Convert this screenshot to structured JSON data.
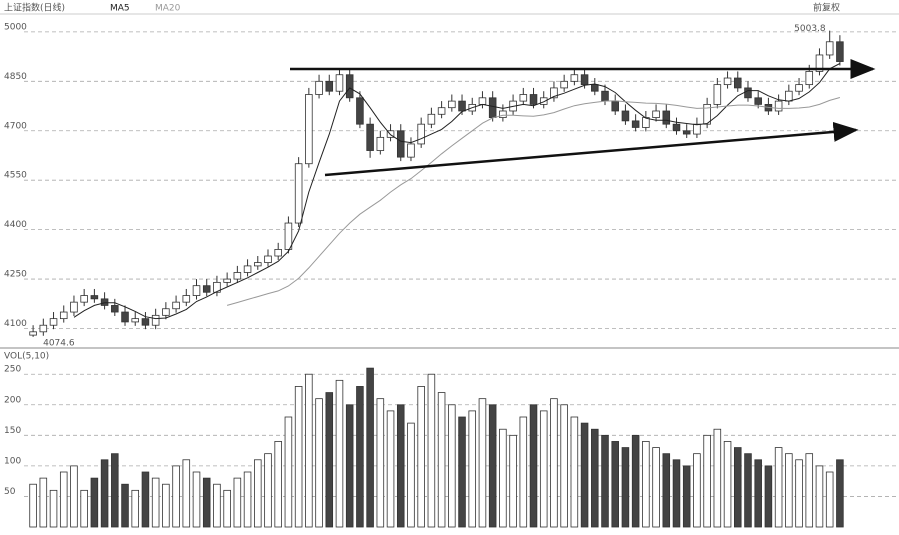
{
  "title": "上证指数(日线)",
  "adjust": "前复权",
  "volume_title": "VOL(5,10)",
  "chart_data": [
    {
      "type": "candlestick",
      "open": [
        4080,
        4090,
        4110,
        4130,
        4150,
        4180,
        4200,
        4190,
        4170,
        4150,
        4120,
        4130,
        4110,
        4140,
        4160,
        4180,
        4200,
        4230,
        4210,
        4240,
        4250,
        4270,
        4290,
        4300,
        4320,
        4340,
        4420,
        4600,
        4810,
        4850,
        4820,
        4870,
        4800,
        4720,
        4640,
        4680,
        4700,
        4620,
        4660,
        4720,
        4750,
        4770,
        4790,
        4760,
        4780,
        4800,
        4740,
        4760,
        4790,
        4810,
        4780,
        4800,
        4830,
        4850,
        4870,
        4840,
        4820,
        4790,
        4760,
        4730,
        4710,
        4740,
        4760,
        4720,
        4700,
        4690,
        4720,
        4780,
        4840,
        4860,
        4830,
        4800,
        4780,
        4760,
        4790,
        4820,
        4840,
        4880,
        4930,
        4970
      ],
      "high": [
        4110,
        4130,
        4150,
        4170,
        4200,
        4220,
        4220,
        4210,
        4190,
        4170,
        4150,
        4150,
        4160,
        4180,
        4200,
        4220,
        4250,
        4250,
        4260,
        4270,
        4290,
        4310,
        4320,
        4340,
        4360,
        4440,
        4620,
        4830,
        4870,
        4870,
        4890,
        4890,
        4820,
        4740,
        4700,
        4720,
        4720,
        4680,
        4740,
        4770,
        4790,
        4810,
        4810,
        4800,
        4820,
        4820,
        4780,
        4810,
        4830,
        4830,
        4820,
        4850,
        4870,
        4890,
        4890,
        4860,
        4840,
        4810,
        4780,
        4750,
        4760,
        4780,
        4780,
        4740,
        4720,
        4740,
        4800,
        4860,
        4880,
        4880,
        4850,
        4820,
        4800,
        4810,
        4840,
        4860,
        4900,
        4950,
        5003.8,
        4990
      ],
      "low": [
        4074.6,
        4078,
        4098,
        4118,
        4138,
        4168,
        4178,
        4158,
        4138,
        4108,
        4108,
        4098,
        4098,
        4128,
        4148,
        4168,
        4188,
        4198,
        4198,
        4228,
        4238,
        4258,
        4278,
        4288,
        4308,
        4328,
        4408,
        4588,
        4798,
        4808,
        4808,
        4788,
        4708,
        4618,
        4628,
        4668,
        4608,
        4608,
        4648,
        4708,
        4738,
        4758,
        4748,
        4748,
        4768,
        4728,
        4728,
        4748,
        4778,
        4768,
        4768,
        4788,
        4818,
        4838,
        4828,
        4808,
        4778,
        4748,
        4718,
        4698,
        4698,
        4728,
        4708,
        4688,
        4678,
        4678,
        4708,
        4768,
        4828,
        4818,
        4788,
        4768,
        4748,
        4748,
        4778,
        4808,
        4828,
        4868,
        4918,
        4898
      ],
      "close": [
        4090,
        4110,
        4130,
        4150,
        4180,
        4200,
        4190,
        4170,
        4150,
        4120,
        4130,
        4110,
        4140,
        4160,
        4180,
        4200,
        4230,
        4210,
        4240,
        4250,
        4270,
        4290,
        4300,
        4320,
        4340,
        4420,
        4600,
        4810,
        4850,
        4820,
        4870,
        4800,
        4720,
        4640,
        4680,
        4700,
        4620,
        4660,
        4720,
        4750,
        4770,
        4790,
        4760,
        4780,
        4800,
        4740,
        4760,
        4790,
        4810,
        4780,
        4800,
        4830,
        4850,
        4870,
        4840,
        4820,
        4790,
        4760,
        4730,
        4710,
        4740,
        4760,
        4720,
        4700,
        4690,
        4720,
        4780,
        4840,
        4860,
        4830,
        4800,
        4780,
        4760,
        4790,
        4820,
        4840,
        4880,
        4930,
        4970,
        4910
      ],
      "series": [
        {
          "name": "MA5",
          "color": "#222222",
          "values": [
            null,
            null,
            null,
            null,
            4134,
            4154,
            4170,
            4178,
            4178,
            4166,
            4152,
            4136,
            4130,
            4132,
            4144,
            4158,
            4182,
            4196,
            4212,
            4226,
            4240,
            4254,
            4270,
            4286,
            4304,
            4334,
            4396,
            4514,
            4604,
            4690,
            4790,
            4830,
            4812,
            4770,
            4726,
            4688,
            4668,
            4664,
            4676,
            4690,
            4704,
            4728,
            4758,
            4770,
            4780,
            4774,
            4768,
            4774,
            4780,
            4776,
            4788,
            4804,
            4814,
            4826,
            4838,
            4842,
            4834,
            4816,
            4788,
            4762,
            4738,
            4732,
            4732,
            4726,
            4722,
            4718,
            4722,
            4746,
            4778,
            4806,
            4822,
            4822,
            4806,
            4794,
            4790,
            4798,
            4818,
            4846,
            4888,
            4904
          ]
        },
        {
          "name": "MA20",
          "color": "#999999",
          "values": [
            null,
            null,
            null,
            null,
            null,
            null,
            null,
            null,
            null,
            null,
            null,
            null,
            null,
            null,
            null,
            null,
            null,
            null,
            null,
            4170,
            4179,
            4188,
            4197,
            4206,
            4214,
            4229,
            4252,
            4284,
            4319,
            4354,
            4389,
            4420,
            4447,
            4468,
            4489,
            4514,
            4536,
            4555,
            4579,
            4604,
            4630,
            4654,
            4677,
            4700,
            4723,
            4739,
            4747,
            4747,
            4745,
            4744,
            4748,
            4755,
            4766,
            4776,
            4782,
            4786,
            4790,
            4791,
            4788,
            4786,
            4784,
            4783,
            4781,
            4777,
            4772,
            4768,
            4769,
            4772,
            4775,
            4778,
            4778,
            4775,
            4771,
            4768,
            4768,
            4769,
            4772,
            4780,
            4792,
            4801
          ]
        }
      ],
      "up_color": "#ffffff",
      "down_color": "#444444",
      "ylim": [
        4050,
        5030
      ],
      "yticks": [
        4100,
        4250,
        4400,
        4550,
        4700,
        4850,
        5000
      ],
      "grid": true
    },
    {
      "type": "bar",
      "values": [
        70,
        80,
        60,
        90,
        100,
        60,
        80,
        110,
        120,
        70,
        60,
        90,
        80,
        70,
        100,
        110,
        90,
        80,
        70,
        60,
        80,
        90,
        110,
        120,
        140,
        180,
        230,
        250,
        210,
        220,
        240,
        200,
        230,
        260,
        210,
        190,
        200,
        170,
        230,
        250,
        220,
        200,
        180,
        190,
        210,
        200,
        160,
        150,
        180,
        200,
        190,
        210,
        200,
        180,
        170,
        160,
        150,
        140,
        130,
        150,
        140,
        130,
        120,
        110,
        100,
        120,
        150,
        160,
        140,
        130,
        120,
        110,
        100,
        130,
        120,
        110,
        120,
        100,
        90,
        110
      ],
      "ylim": [
        0,
        270
      ],
      "yticks": [
        50,
        100,
        150,
        200,
        250
      ],
      "grid": true
    }
  ]
}
